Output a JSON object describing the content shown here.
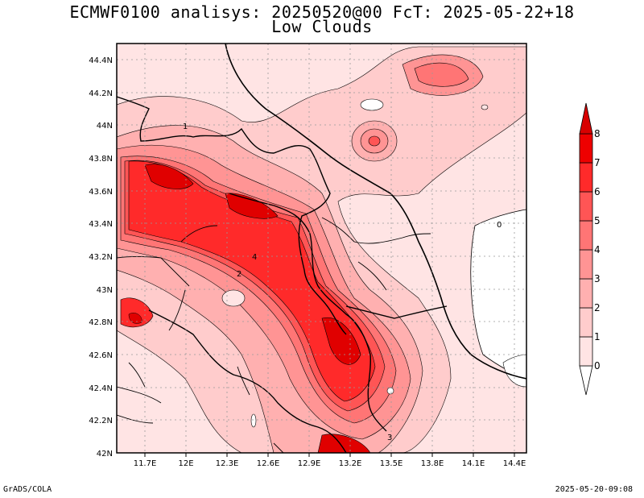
{
  "header": {
    "title_line1": "ECMWF0100 analisys: 20250520@00 FcT: 2025-05-22+18",
    "title_line2": "Low Clouds"
  },
  "map": {
    "lon_ticks": [
      "11.7E",
      "12E",
      "12.3E",
      "12.6E",
      "12.9E",
      "13.2E",
      "13.5E",
      "13.8E",
      "14.1E",
      "14.4E"
    ],
    "lat_ticks": [
      "42N",
      "42.2N",
      "42.4N",
      "42.6N",
      "42.8N",
      "43N",
      "43.2N",
      "43.4N",
      "43.6N",
      "43.8N",
      "44N",
      "44.2N",
      "44.4N"
    ],
    "contour_labels": [
      "0",
      "1",
      "2",
      "3",
      "4"
    ],
    "colors": {
      "c0": "#ffffff",
      "c1": "#ffe4e4",
      "c2": "#ffcccc",
      "c3": "#ffb0b0",
      "c4": "#ff9494",
      "c5": "#ff7575",
      "c6": "#ff5555",
      "c7": "#ff2a2a",
      "c8": "#e00000"
    }
  },
  "colorbar": {
    "labels": [
      "0",
      "1",
      "2",
      "3",
      "4",
      "5",
      "6",
      "7",
      "8"
    ]
  },
  "footer": {
    "left": "GrADS/COLA",
    "right": "2025-05-20-09:08"
  }
}
